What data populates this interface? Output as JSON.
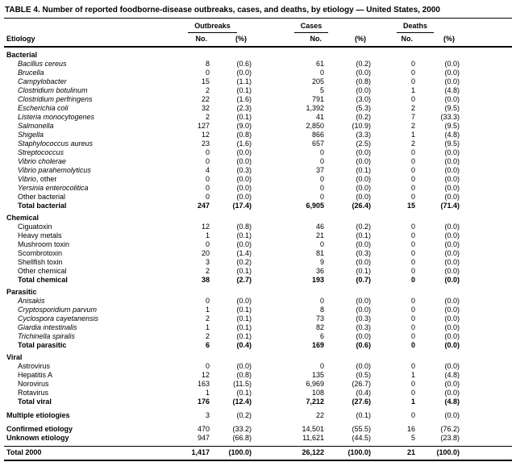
{
  "colors": {
    "background": "#ffffff",
    "text": "#000000",
    "rules": "#000000"
  },
  "table": {
    "title": "TABLE 4. Number of reported foodborne-disease outbreaks, cases, and deaths, by etiology — United States, 2000",
    "etiology_header": "Etiology",
    "column_groups": [
      {
        "label": "Outbreaks",
        "sub": [
          "No.",
          "(%)"
        ]
      },
      {
        "label": "Cases",
        "sub": [
          "No.",
          "(%)"
        ]
      },
      {
        "label": "Deaths",
        "sub": [
          "No.",
          "(%)"
        ]
      }
    ],
    "sections": [
      {
        "header": "Bacterial",
        "rows": [
          {
            "label": "Bacillus cereus",
            "italic": true,
            "indent": true,
            "values": [
              "8",
              "(0.6)",
              "61",
              "(0.2)",
              "0",
              "(0.0)"
            ]
          },
          {
            "label": "Brucella",
            "italic": true,
            "indent": true,
            "values": [
              "0",
              "(0.0)",
              "0",
              "(0.0)",
              "0",
              "(0.0)"
            ]
          },
          {
            "label": "Campylobacter",
            "italic": true,
            "indent": true,
            "values": [
              "15",
              "(1.1)",
              "205",
              "(0.8)",
              "0",
              "(0.0)"
            ]
          },
          {
            "label": "Clostridium botulinum",
            "italic": true,
            "indent": true,
            "values": [
              "2",
              "(0.1)",
              "5",
              "(0.0)",
              "1",
              "(4.8)"
            ]
          },
          {
            "label": "Clostridium perfringens",
            "italic": true,
            "indent": true,
            "values": [
              "22",
              "(1.6)",
              "791",
              "(3.0)",
              "0",
              "(0.0)"
            ]
          },
          {
            "label": "Escherichia coli",
            "italic": true,
            "indent": true,
            "values": [
              "32",
              "(2.3)",
              "1,392",
              "(5.3)",
              "2",
              "(9.5)"
            ]
          },
          {
            "label": "Listeria monocytogenes",
            "italic": true,
            "indent": true,
            "values": [
              "2",
              "(0.1)",
              "41",
              "(0.2)",
              "7",
              "(33.3)"
            ]
          },
          {
            "label": "Salmonella",
            "italic": true,
            "indent": true,
            "values": [
              "127",
              "(9.0)",
              "2,850",
              "(10.9)",
              "2",
              "(9.5)"
            ]
          },
          {
            "label": "Shigella",
            "italic": true,
            "indent": true,
            "values": [
              "12",
              "(0.8)",
              "866",
              "(3.3)",
              "1",
              "(4.8)"
            ]
          },
          {
            "label": "Staphylococcus aureus",
            "italic": true,
            "indent": true,
            "values": [
              "23",
              "(1.6)",
              "657",
              "(2.5)",
              "2",
              "(9.5)"
            ]
          },
          {
            "label": "Streptococcus",
            "italic": true,
            "indent": true,
            "values": [
              "0",
              "(0.0)",
              "0",
              "(0.0)",
              "0",
              "(0.0)"
            ]
          },
          {
            "label": "Vibrio cholerae",
            "italic": true,
            "indent": true,
            "values": [
              "0",
              "(0.0)",
              "0",
              "(0.0)",
              "0",
              "(0.0)"
            ]
          },
          {
            "label": "Vibrio parahemolyticus",
            "italic": true,
            "indent": true,
            "values": [
              "4",
              "(0.3)",
              "37",
              "(0.1)",
              "0",
              "(0.0)"
            ]
          },
          {
            "label": "Vibrio",
            "suffix": ", other",
            "italic": true,
            "indent": true,
            "values": [
              "0",
              "(0.0)",
              "0",
              "(0.0)",
              "0",
              "(0.0)"
            ]
          },
          {
            "label": "Yersinia enterocolitica",
            "italic": true,
            "indent": true,
            "values": [
              "0",
              "(0.0)",
              "0",
              "(0.0)",
              "0",
              "(0.0)"
            ]
          },
          {
            "label": "Other bacterial",
            "indent": true,
            "values": [
              "0",
              "(0.0)",
              "0",
              "(0.0)",
              "0",
              "(0.0)"
            ]
          },
          {
            "label": "Total bacterial",
            "bold": true,
            "indent": true,
            "values": [
              "247",
              "(17.4)",
              "6,905",
              "(26.4)",
              "15",
              "(71.4)"
            ]
          }
        ]
      },
      {
        "header": "Chemical",
        "rows": [
          {
            "label": "Ciguatoxin",
            "indent": true,
            "values": [
              "12",
              "(0.8)",
              "46",
              "(0.2)",
              "0",
              "(0.0)"
            ]
          },
          {
            "label": "Heavy metals",
            "indent": true,
            "values": [
              "1",
              "(0.1)",
              "21",
              "(0.1)",
              "0",
              "(0.0)"
            ]
          },
          {
            "label": "Mushroom toxin",
            "indent": true,
            "values": [
              "0",
              "(0.0)",
              "0",
              "(0.0)",
              "0",
              "(0.0)"
            ]
          },
          {
            "label": "Scombrotoxin",
            "indent": true,
            "values": [
              "20",
              "(1.4)",
              "81",
              "(0.3)",
              "0",
              "(0.0)"
            ]
          },
          {
            "label": "Shellfish toxin",
            "indent": true,
            "values": [
              "3",
              "(0.2)",
              "9",
              "(0.0)",
              "0",
              "(0.0)"
            ]
          },
          {
            "label": "Other chemical",
            "indent": true,
            "values": [
              "2",
              "(0.1)",
              "36",
              "(0.1)",
              "0",
              "(0.0)"
            ]
          },
          {
            "label": "Total chemical",
            "bold": true,
            "indent": true,
            "values": [
              "38",
              "(2.7)",
              "193",
              "(0.7)",
              "0",
              "(0.0)"
            ]
          }
        ]
      },
      {
        "header": "Parasitic",
        "rows": [
          {
            "label": "Anisakis",
            "italic": true,
            "indent": true,
            "values": [
              "0",
              "(0.0)",
              "0",
              "(0.0)",
              "0",
              "(0.0)"
            ]
          },
          {
            "label": "Cryptosporidium parvum",
            "italic": true,
            "indent": true,
            "values": [
              "1",
              "(0.1)",
              "8",
              "(0.0)",
              "0",
              "(0.0)"
            ]
          },
          {
            "label": "Cyclospora cayetanensis",
            "italic": true,
            "indent": true,
            "values": [
              "2",
              "(0.1)",
              "73",
              "(0.3)",
              "0",
              "(0.0)"
            ]
          },
          {
            "label": "Giardia intestinalis",
            "italic": true,
            "indent": true,
            "values": [
              "1",
              "(0.1)",
              "82",
              "(0.3)",
              "0",
              "(0.0)"
            ]
          },
          {
            "label": "Trichinella spiralis",
            "italic": true,
            "indent": true,
            "values": [
              "2",
              "(0.1)",
              "6",
              "(0.0)",
              "0",
              "(0.0)"
            ]
          },
          {
            "label": "Total parasitic",
            "bold": true,
            "indent": true,
            "values": [
              "6",
              "(0.4)",
              "169",
              "(0.6)",
              "0",
              "(0.0)"
            ]
          }
        ]
      },
      {
        "header": "Viral",
        "rows": [
          {
            "label": "Astrovirus",
            "indent": true,
            "values": [
              "0",
              "(0.0)",
              "0",
              "(0.0)",
              "0",
              "(0.0)"
            ]
          },
          {
            "label": "Hepatitis A",
            "indent": true,
            "values": [
              "12",
              "(0.8)",
              "135",
              "(0.5)",
              "1",
              "(4.8)"
            ]
          },
          {
            "label": "Norovirus",
            "indent": true,
            "values": [
              "163",
              "(11.5)",
              "6,969",
              "(26.7)",
              "0",
              "(0.0)"
            ]
          },
          {
            "label": "Rotavirus",
            "indent": true,
            "values": [
              "1",
              "(0.1)",
              "108",
              "(0.4)",
              "0",
              "(0.0)"
            ]
          },
          {
            "label": "Total viral",
            "bold": true,
            "indent": true,
            "values": [
              "176",
              "(12.4)",
              "7,212",
              "(27.6)",
              "1",
              "(4.8)"
            ]
          }
        ]
      },
      {
        "header": null,
        "rows": [
          {
            "label": "Multiple etiologies",
            "bold_label": true,
            "gap": true,
            "values": [
              "3",
              "(0.2)",
              "22",
              "(0.1)",
              "0",
              "(0.0)"
            ]
          }
        ]
      },
      {
        "header": null,
        "rows": [
          {
            "label": "Confirmed etiology",
            "bold_label": true,
            "gap": true,
            "values": [
              "470",
              "(33.2)",
              "14,501",
              "(55.5)",
              "16",
              "(76.2)"
            ]
          },
          {
            "label": "Unknown etiology",
            "bold_label": true,
            "pad_b": true,
            "values": [
              "947",
              "(66.8)",
              "11,621",
              "(44.5)",
              "5",
              "(23.8)"
            ]
          }
        ]
      },
      {
        "header": null,
        "rows": [
          {
            "label": "Total 2000",
            "bold": true,
            "total": true,
            "values": [
              "1,417",
              "(100.0)",
              "26,122",
              "(100.0)",
              "21",
              "(100.0)"
            ]
          }
        ]
      }
    ]
  }
}
